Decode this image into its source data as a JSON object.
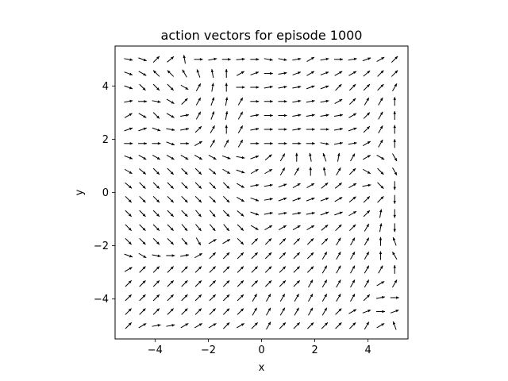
{
  "chart_data": {
    "type": "quiver",
    "title": "action vectors for episode 1000",
    "xlabel": "x",
    "ylabel": "y",
    "xlim": [
      -5.5,
      5.5
    ],
    "ylim": [
      -5.5,
      5.5
    ],
    "xticks": [
      -4,
      -2,
      0,
      2,
      4
    ],
    "yticks": [
      -4,
      -2,
      0,
      2,
      4
    ],
    "xtick_labels": [
      "−4",
      "−2",
      "0",
      "2",
      "4"
    ],
    "ytick_labels": [
      "−4",
      "−2",
      "0",
      "2",
      "4"
    ],
    "grid": false,
    "arrow_color": "#000000",
    "grid_x": [
      -5.0,
      -4.47,
      -3.95,
      -3.42,
      -2.89,
      -2.37,
      -1.84,
      -1.32,
      -0.79,
      -0.26,
      0.26,
      0.79,
      1.32,
      1.84,
      2.37,
      2.89,
      3.42,
      3.95,
      4.47,
      5.0
    ],
    "grid_y": [
      5.0,
      4.47,
      3.95,
      3.42,
      2.89,
      2.37,
      1.84,
      1.32,
      0.79,
      0.26,
      -0.26,
      -0.79,
      -1.32,
      -1.84,
      -2.37,
      -2.89,
      -3.42,
      -3.95,
      -4.47,
      -5.0
    ],
    "directions_deg": [
      [
        -10,
        -20,
        45,
        40,
        100,
        0,
        10,
        0,
        5,
        0,
        -10,
        -10,
        10,
        30,
        10,
        0,
        10,
        20,
        30,
        45
      ],
      [
        -20,
        -30,
        135,
        135,
        120,
        110,
        100,
        90,
        30,
        20,
        0,
        10,
        20,
        30,
        20,
        30,
        30,
        40,
        45,
        45
      ],
      [
        -20,
        -45,
        -45,
        -45,
        -30,
        60,
        80,
        90,
        0,
        0,
        10,
        10,
        10,
        20,
        20,
        45,
        45,
        45,
        45,
        60
      ],
      [
        10,
        0,
        -10,
        -30,
        45,
        60,
        70,
        80,
        60,
        0,
        0,
        0,
        10,
        10,
        10,
        30,
        45,
        60,
        60,
        90
      ],
      [
        30,
        -30,
        -45,
        -30,
        10,
        60,
        70,
        80,
        60,
        10,
        0,
        0,
        10,
        10,
        10,
        10,
        30,
        45,
        60,
        90
      ],
      [
        20,
        20,
        -20,
        -10,
        10,
        45,
        60,
        90,
        60,
        10,
        0,
        0,
        10,
        0,
        0,
        10,
        20,
        45,
        60,
        90
      ],
      [
        0,
        0,
        0,
        -20,
        0,
        30,
        60,
        60,
        60,
        0,
        0,
        0,
        0,
        0,
        -10,
        10,
        10,
        30,
        60,
        90
      ],
      [
        -20,
        -30,
        -30,
        -30,
        -30,
        -30,
        -30,
        -20,
        -10,
        20,
        40,
        60,
        90,
        100,
        110,
        80,
        60,
        30,
        -30,
        -60
      ],
      [
        -30,
        -40,
        -45,
        -45,
        -45,
        -45,
        -40,
        -30,
        -20,
        30,
        30,
        60,
        60,
        90,
        100,
        60,
        45,
        -30,
        -45,
        -60
      ],
      [
        -40,
        -45,
        -45,
        -45,
        -45,
        -45,
        -45,
        -45,
        -30,
        10,
        10,
        20,
        30,
        30,
        40,
        40,
        30,
        10,
        -45,
        -90
      ],
      [
        -45,
        -45,
        -45,
        -45,
        -45,
        -45,
        -45,
        -45,
        -30,
        -20,
        10,
        20,
        20,
        20,
        20,
        30,
        40,
        45,
        45,
        -90
      ],
      [
        -45,
        -45,
        -45,
        -45,
        -45,
        -50,
        -50,
        -45,
        -40,
        -20,
        10,
        10,
        10,
        10,
        20,
        20,
        30,
        45,
        80,
        -90
      ],
      [
        -45,
        -45,
        -45,
        -45,
        -50,
        -50,
        -50,
        -50,
        -45,
        -30,
        30,
        30,
        30,
        30,
        40,
        45,
        45,
        60,
        80,
        -90
      ],
      [
        -45,
        -45,
        -45,
        -45,
        -50,
        -60,
        30,
        30,
        -45,
        45,
        45,
        45,
        45,
        45,
        45,
        60,
        60,
        60,
        90,
        110
      ],
      [
        -20,
        -30,
        -10,
        0,
        10,
        30,
        45,
        45,
        45,
        45,
        45,
        45,
        45,
        45,
        60,
        60,
        60,
        60,
        90,
        120
      ],
      [
        30,
        45,
        45,
        45,
        45,
        45,
        45,
        45,
        45,
        45,
        45,
        45,
        45,
        45,
        60,
        60,
        60,
        60,
        60,
        90
      ],
      [
        45,
        45,
        45,
        45,
        45,
        45,
        45,
        45,
        45,
        45,
        45,
        45,
        45,
        60,
        60,
        60,
        60,
        60,
        30,
        60
      ],
      [
        45,
        45,
        45,
        45,
        45,
        45,
        45,
        45,
        45,
        60,
        60,
        60,
        60,
        60,
        60,
        60,
        60,
        45,
        10,
        0
      ],
      [
        45,
        45,
        45,
        45,
        45,
        45,
        45,
        45,
        45,
        60,
        60,
        60,
        60,
        60,
        60,
        45,
        30,
        20,
        0,
        20
      ],
      [
        45,
        30,
        10,
        10,
        30,
        30,
        30,
        45,
        30,
        45,
        60,
        45,
        45,
        45,
        45,
        45,
        45,
        60,
        30,
        110
      ]
    ]
  }
}
